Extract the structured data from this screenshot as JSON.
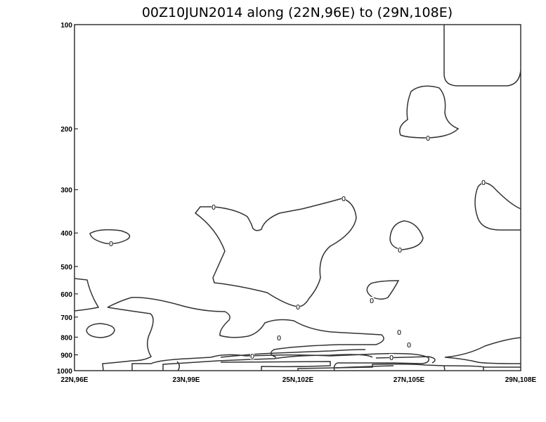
{
  "chart_data": {
    "type": "contour",
    "title": "00Z10JUN2014 along (22N,96E) to (29N,108E)",
    "x_tick_labels": [
      "22N,96E",
      "23N,99E",
      "25N,102E",
      "27N,105E",
      "29N,108E"
    ],
    "y_tick_labels": [
      "100",
      "200",
      "300",
      "400",
      "500",
      "600",
      "700",
      "800",
      "900",
      "1000"
    ],
    "y_values": [
      100,
      200,
      300,
      400,
      500,
      600,
      700,
      800,
      900,
      1000
    ],
    "y_scale": "log",
    "y_reversed": true,
    "ylim": [
      1000,
      100
    ],
    "contour_levels": [
      0
    ],
    "contour_label": "0",
    "grid": false,
    "line_color": "#333333"
  }
}
